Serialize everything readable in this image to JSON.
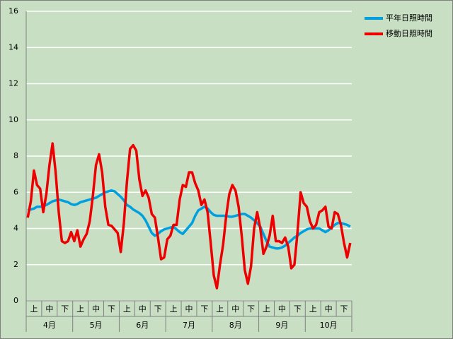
{
  "chart_data": {
    "type": "line",
    "categories": [
      null,
      null,
      "上",
      null,
      null,
      null,
      null,
      "中",
      null,
      null,
      null,
      null,
      "下",
      null,
      null,
      null,
      null,
      "上",
      null,
      null,
      null,
      null,
      "中",
      null,
      null,
      null,
      null,
      "下",
      null,
      null,
      null,
      null,
      "上",
      null,
      null,
      null,
      null,
      "中",
      null,
      null,
      null,
      null,
      "下",
      null,
      null,
      null,
      null,
      "上",
      null,
      null,
      null,
      null,
      "中",
      null,
      null,
      null,
      null,
      "下",
      null,
      null,
      null,
      null,
      "上",
      null,
      null,
      null,
      null,
      "中",
      null,
      null,
      null,
      null,
      "下",
      null,
      null,
      null,
      null,
      "上",
      null,
      null,
      null,
      null,
      "中",
      null,
      null,
      null,
      null,
      "下",
      null,
      null,
      null,
      null,
      "上",
      null,
      null,
      null,
      null,
      "中",
      null,
      null,
      null,
      null,
      "下",
      null,
      null
    ],
    "months": [
      "4月",
      "5月",
      "6月",
      "7月",
      "8月",
      "9月",
      "10月"
    ],
    "ylim": [
      0,
      16
    ],
    "yticks": [
      0,
      2,
      4,
      6,
      8,
      10,
      12,
      14,
      16
    ],
    "grid": true,
    "legend": "right",
    "series": [
      {
        "name": "平年日照時間",
        "color": "#00a0e0",
        "values": [
          5.0,
          5.05,
          5.1,
          5.2,
          5.2,
          5.25,
          5.3,
          5.4,
          5.5,
          5.55,
          5.6,
          5.55,
          5.5,
          5.45,
          5.35,
          5.3,
          5.35,
          5.45,
          5.5,
          5.55,
          5.6,
          5.65,
          5.7,
          5.8,
          5.9,
          6.0,
          6.05,
          6.1,
          6.05,
          5.9,
          5.75,
          5.55,
          5.3,
          5.2,
          5.05,
          4.95,
          4.85,
          4.7,
          4.45,
          4.1,
          3.75,
          3.6,
          3.7,
          3.85,
          3.95,
          4.0,
          4.05,
          4.1,
          3.95,
          3.8,
          3.7,
          3.9,
          4.1,
          4.3,
          4.7,
          5.0,
          5.1,
          5.2,
          5.1,
          4.9,
          4.75,
          4.7,
          4.7,
          4.7,
          4.7,
          4.65,
          4.65,
          4.7,
          4.75,
          4.8,
          4.8,
          4.7,
          4.6,
          4.45,
          4.3,
          4.1,
          3.7,
          3.3,
          3.0,
          2.95,
          2.9,
          2.9,
          2.95,
          3.05,
          3.2,
          3.35,
          3.5,
          3.6,
          3.75,
          3.85,
          3.95,
          4.0,
          4.0,
          4.0,
          4.0,
          3.9,
          3.8,
          3.9,
          4.05,
          4.2,
          4.3,
          4.3,
          4.25,
          4.2,
          4.1
        ]
      },
      {
        "name": "移動日照時間",
        "color": "#ee0000",
        "values": [
          4.6,
          5.5,
          7.2,
          6.4,
          6.2,
          4.9,
          5.9,
          7.5,
          8.7,
          7.1,
          4.9,
          3.3,
          3.2,
          3.3,
          3.8,
          3.3,
          3.9,
          3.0,
          3.4,
          3.7,
          4.4,
          5.8,
          7.5,
          8.1,
          7.1,
          5.2,
          4.2,
          4.15,
          3.95,
          3.75,
          2.7,
          4.3,
          6.6,
          8.4,
          8.6,
          8.3,
          6.7,
          5.8,
          6.1,
          5.7,
          4.8,
          4.6,
          3.5,
          2.3,
          2.4,
          3.4,
          3.6,
          4.2,
          4.2,
          5.6,
          6.4,
          6.3,
          7.1,
          7.1,
          6.5,
          6.1,
          5.3,
          5.6,
          4.9,
          3.2,
          1.4,
          0.7,
          2.0,
          3.1,
          4.7,
          5.9,
          6.4,
          6.1,
          5.2,
          3.6,
          1.7,
          0.95,
          1.9,
          4.0,
          4.9,
          4.0,
          2.6,
          3.0,
          3.6,
          4.7,
          3.3,
          3.3,
          3.2,
          3.5,
          3.0,
          1.8,
          2.0,
          3.8,
          6.0,
          5.4,
          5.2,
          4.4,
          4.0,
          4.2,
          4.9,
          5.0,
          5.2,
          4.1,
          4.0,
          4.9,
          4.8,
          4.2,
          3.2,
          2.4,
          3.2
        ]
      }
    ]
  }
}
